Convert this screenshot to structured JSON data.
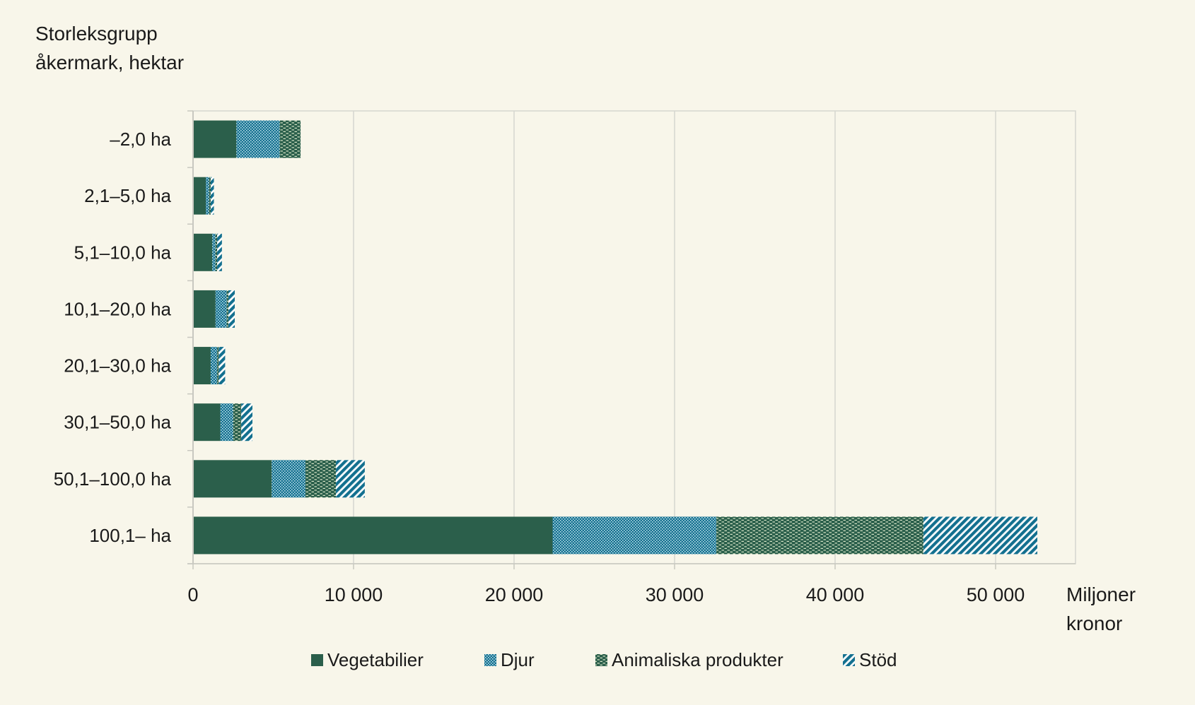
{
  "chart_data": {
    "type": "bar",
    "orientation": "horizontal",
    "stacked": true,
    "ytitle_lines": [
      "Storleksgrupp",
      "åkermark, hektar"
    ],
    "xunit_lines": [
      "Miljoner",
      "kronor"
    ],
    "categories": [
      "–2,0 ha",
      "2,1–5,0 ha",
      "5,1–10,0 ha",
      "10,1–20,0 ha",
      "20,1–30,0 ha",
      "30,1–50,0 ha",
      "50,1–100,0 ha",
      "100,1– ha"
    ],
    "series": [
      {
        "name": "Vegetabilier",
        "color": "#2b5f4b",
        "pattern": "solid",
        "values": [
          2700,
          800,
          1200,
          1400,
          1100,
          1700,
          4900,
          22400
        ]
      },
      {
        "name": "Djur",
        "color": "#13708f",
        "pattern": "dots",
        "values": [
          2700,
          200,
          200,
          700,
          400,
          800,
          2100,
          10200
        ]
      },
      {
        "name": "Animaliska produkter",
        "color": "#2b5f4b",
        "pattern": "dashes",
        "values": [
          1300,
          100,
          100,
          100,
          100,
          500,
          1900,
          12900
        ]
      },
      {
        "name": "Stöd",
        "color": "#13708f",
        "pattern": "stripes",
        "values": [
          0,
          200,
          300,
          400,
          400,
          700,
          1800,
          7100
        ]
      }
    ],
    "xlim": [
      0,
      55000
    ],
    "xticks": [
      0,
      10000,
      20000,
      30000,
      40000,
      50000
    ],
    "xtick_labels": [
      "0",
      "10 000",
      "20 000",
      "30 000",
      "40 000",
      "50 000"
    ],
    "grid": true,
    "legend_position": "bottom"
  }
}
